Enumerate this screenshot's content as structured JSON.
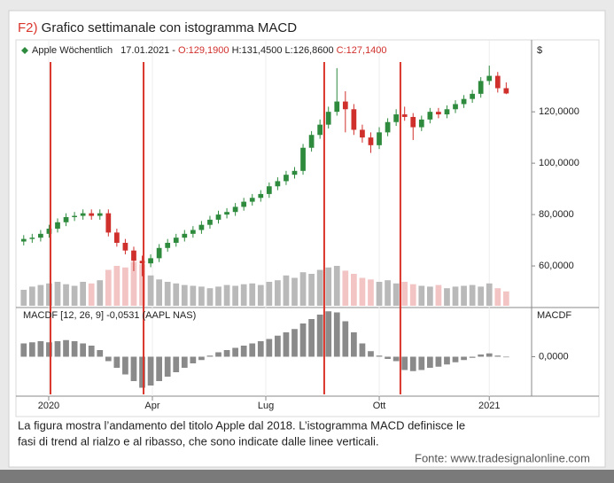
{
  "chart_data": {
    "type": "candlestick",
    "title_prefix": "F2)",
    "title": "Grafico settimanale con istogramma MACD",
    "header": {
      "name": "Apple Wöchentlich",
      "date": "17.01.2021 -",
      "open": "O:129,1900",
      "high": "H:131,4500",
      "low": "L:126,8600",
      "close": "C:127,1400"
    },
    "y_axis_label": "$",
    "open": [
      69.5,
      70.5,
      71,
      72.5,
      74.5,
      77,
      79,
      79.5,
      80.5,
      79.5,
      80.5,
      73,
      69,
      66,
      62,
      61,
      63,
      67,
      69,
      71,
      72.5,
      74,
      76,
      78,
      80,
      81,
      83,
      85,
      86.5,
      88,
      91,
      93,
      95.5,
      97,
      106,
      111,
      115,
      120,
      124,
      121,
      113,
      110,
      107,
      112,
      116,
      119,
      118,
      114,
      117,
      120,
      119,
      121,
      123,
      125,
      127,
      132,
      134,
      129.19
    ],
    "high": [
      72,
      72.5,
      74,
      76,
      78.5,
      80.5,
      81,
      82,
      82,
      82,
      82,
      74.5,
      70.5,
      67.5,
      64,
      64.5,
      68.5,
      70.5,
      72.5,
      74,
      75.5,
      77.5,
      79.5,
      81.5,
      82.5,
      84.5,
      86.5,
      88,
      89.5,
      92.5,
      94.5,
      97,
      98.5,
      107.5,
      112.5,
      117,
      122,
      137,
      128,
      123,
      115,
      112,
      114,
      117.5,
      121,
      122,
      119.5,
      118.5,
      121.5,
      121.5,
      122.5,
      124.5,
      126.5,
      128.5,
      133.5,
      138,
      135.5,
      131.45
    ],
    "low": [
      68,
      69,
      69.5,
      71,
      73,
      75.5,
      77.5,
      78,
      78,
      78,
      71.5,
      67.5,
      64.5,
      58,
      56,
      59.5,
      61.5,
      65.5,
      67.5,
      69.5,
      71,
      72.5,
      74.5,
      76.5,
      78.5,
      79.5,
      81.5,
      83.5,
      85,
      86.5,
      89.5,
      91.5,
      94,
      95.5,
      104.5,
      109.5,
      113.5,
      118.5,
      112,
      111,
      108,
      104,
      105.5,
      110.5,
      114.5,
      116.5,
      109,
      112.5,
      115.5,
      117.5,
      117.5,
      119.5,
      121.5,
      123.5,
      125.5,
      130.5,
      127.5,
      126.86
    ],
    "close": [
      70.5,
      71,
      72.5,
      74.5,
      77,
      79,
      79.5,
      80.5,
      79.5,
      80.5,
      73,
      69,
      66,
      62,
      61,
      63,
      67,
      69,
      71,
      72.5,
      74,
      76,
      78,
      80,
      81,
      83,
      85,
      86.5,
      88,
      91,
      93,
      95.5,
      97,
      106,
      111,
      115,
      120,
      124,
      121,
      113,
      110,
      107,
      112,
      116,
      119,
      118,
      114,
      117,
      120,
      119,
      121,
      123,
      125,
      127,
      132,
      134,
      129.19,
      127.14
    ],
    "up_color": "#2e8b3e",
    "down_color": "#d0302c",
    "volume": [
      20,
      24,
      26,
      28,
      30,
      27,
      25,
      30,
      28,
      32,
      45,
      50,
      48,
      55,
      52,
      38,
      33,
      30,
      28,
      26,
      25,
      24,
      22,
      24,
      26,
      25,
      27,
      28,
      26,
      30,
      32,
      38,
      35,
      42,
      40,
      45,
      48,
      50,
      44,
      40,
      35,
      33,
      30,
      32,
      28,
      30,
      27,
      25,
      24,
      26,
      22,
      24,
      25,
      26,
      24,
      28,
      22,
      18
    ],
    "volume_lim": [
      0,
      100
    ],
    "volume_up_color": "#b9b9b9",
    "volume_down_color": "#f3c4c4",
    "macd_label": "MACDF [12, 26, 9] -0,0531 (AAPL NAS)",
    "macd_axis_label": "MACDF",
    "macd": [
      1.2,
      1.3,
      1.4,
      1.3,
      1.4,
      1.5,
      1.4,
      1.2,
      1.0,
      0.6,
      -0.4,
      -1.0,
      -1.6,
      -2.2,
      -2.8,
      -2.6,
      -2.2,
      -1.8,
      -1.4,
      -1.0,
      -0.6,
      -0.3,
      0.1,
      0.4,
      0.6,
      0.8,
      1.0,
      1.2,
      1.4,
      1.6,
      1.9,
      2.2,
      2.5,
      3.0,
      3.4,
      3.8,
      4.1,
      4.0,
      3.2,
      2.2,
      1.2,
      0.5,
      0.1,
      -0.2,
      -0.4,
      -1.2,
      -1.3,
      -1.2,
      -1.0,
      -0.9,
      -0.7,
      -0.5,
      -0.3,
      -0.1,
      0.2,
      0.3,
      0.1,
      -0.0531
    ],
    "macd_color": "#8a8a8a",
    "macd_lim": [
      -3.4,
      4.2
    ],
    "macd_ticks": [
      {
        "value": 0,
        "label": "0,0000"
      }
    ],
    "signal_lines": [
      3.16,
      14.16,
      35.5,
      44.5
    ],
    "signal_color": "#d9352b",
    "xlim": [
      -0.5,
      60
    ],
    "xticks": [
      {
        "value": 2.95,
        "label": "2020"
      },
      {
        "value": 15.2,
        "label": "Apr"
      },
      {
        "value": 28.6,
        "label": "Lug"
      },
      {
        "value": 42.0,
        "label": "Ott"
      },
      {
        "value": 55.0,
        "label": "2021"
      }
    ],
    "ylim": [
      44.5,
      148
    ],
    "yticks": [
      {
        "value": 60,
        "label": "60,0000"
      },
      {
        "value": 80,
        "label": "80,0000"
      },
      {
        "value": 100,
        "label": "100,0000"
      },
      {
        "value": 120,
        "label": "120,0000"
      }
    ],
    "caption": [
      "La figura mostra l’andamento del titolo Apple dal 2018. L’istogramma MACD definisce le",
      "fasi di trend al rialzo e al ribasso, che sono indicate dalle linee verticali."
    ],
    "source": "Fonte: www.tradesignalonline.com"
  }
}
